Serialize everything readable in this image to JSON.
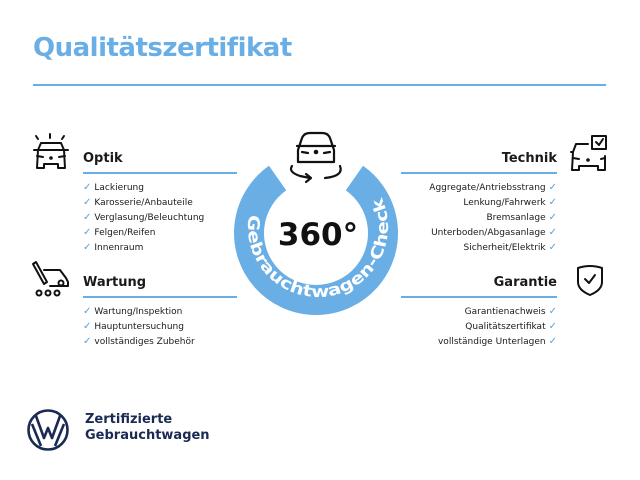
{
  "title": "Qualitätszertifikat",
  "colors": {
    "accent": "#6aaee6",
    "brand_navy": "#1a2a52",
    "check": "#5aa0dc"
  },
  "center": {
    "degrees": "360°",
    "ring_text": "Gebrauchtwagen-Check",
    "icon": "car-360-rotate-icon"
  },
  "sections": {
    "optik": {
      "heading": "Optik",
      "icon": "car-lights-icon",
      "items": [
        "Lackierung",
        "Karosserie/Anbauteile",
        "Verglasung/Beleuchtung",
        "Felgen/Reifen",
        "Innenraum"
      ]
    },
    "wartung": {
      "heading": "Wartung",
      "icon": "service-tools-icon",
      "items": [
        "Wartung/Inspektion",
        "Hauptuntersuchung",
        "vollständiges Zubehör"
      ]
    },
    "technik": {
      "heading": "Technik",
      "icon": "car-checklist-icon",
      "items": [
        "Aggregate/Antriebsstrang",
        "Lenkung/Fahrwerk",
        "Bremsanlage",
        "Unterboden/Abgasanlage",
        "Sicherheit/Elektrik"
      ]
    },
    "garantie": {
      "heading": "Garantie",
      "icon": "shield-check-icon",
      "items": [
        "Garantienachweis",
        "Qualitätszertifikat",
        "vollständige Unterlagen"
      ]
    }
  },
  "check_glyph": "✓",
  "footer": {
    "logo": "VW",
    "line1": "Zertifizierte",
    "line2": "Gebrauchtwagen"
  }
}
